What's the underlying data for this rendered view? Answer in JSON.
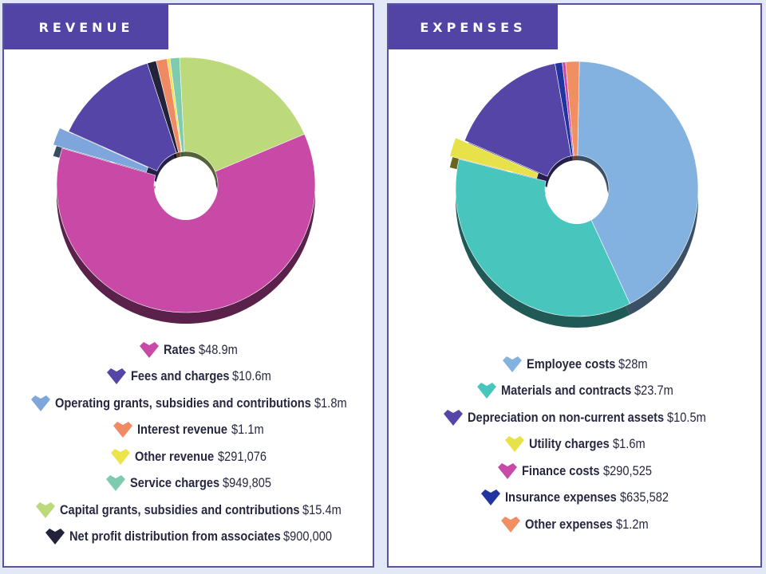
{
  "chart_data": [
    {
      "type": "pie",
      "title": "REVENUE",
      "categories": [
        "Rates",
        "Fees and charges",
        "Operating grants, subsidies and contributions",
        "Interest revenue",
        "Other revenue",
        "Service charges",
        "Capital grants, subsidies and contributions",
        "Net profit distribution from associates"
      ],
      "value_labels": [
        "$48.9m",
        "$10.6m",
        "$1.8m",
        "$1.1m",
        "$291,076",
        "$949,805",
        "$15.4m",
        "$900,000"
      ],
      "values": [
        48900000,
        10600000,
        1800000,
        1100000,
        291076,
        949805,
        15400000,
        900000
      ],
      "colors": [
        "#c94aa6",
        "#5545a6",
        "#7ea6dc",
        "#f08a62",
        "#ece44a",
        "#7fcbb0",
        "#bcd97c",
        "#22223a"
      ],
      "legend_position": "bottom"
    },
    {
      "type": "pie",
      "title": "EXPENSES",
      "categories": [
        "Employee costs",
        "Materials and contracts",
        "Depreciation on non-current assets",
        "Utility charges",
        "Finance costs",
        "Insurance expenses",
        "Other expenses"
      ],
      "value_labels": [
        "$28m",
        "$23.7m",
        "$10.5m",
        "$1.6m",
        "$290,525",
        "$635,582",
        "$1.2m"
      ],
      "values": [
        28000000,
        23700000,
        10500000,
        1600000,
        290525,
        635582,
        1200000
      ],
      "colors": [
        "#83b2e0",
        "#48c6bd",
        "#5545a6",
        "#e8e24a",
        "#c94aa6",
        "#2234a0",
        "#f08f62"
      ],
      "legend_position": "bottom"
    }
  ]
}
